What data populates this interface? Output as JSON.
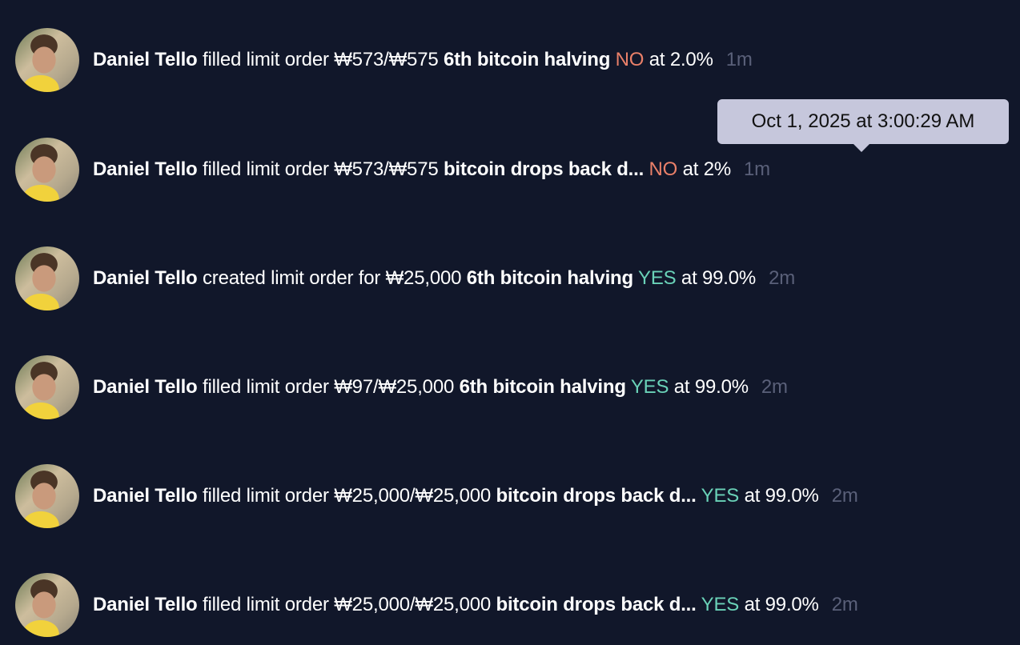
{
  "feed": [
    {
      "user": "Daniel Tello",
      "action": "filled limit order",
      "amount": "₩573/₩575",
      "market": "6th bitcoin halving",
      "outcome": "NO",
      "price": "at 2.0%",
      "time": "1m"
    },
    {
      "user": "Daniel Tello",
      "action": "filled limit order",
      "amount": "₩573/₩575",
      "market": "bitcoin drops back d...",
      "outcome": "NO",
      "price": "at 2%",
      "time": "1m"
    },
    {
      "user": "Daniel Tello",
      "action": "created limit order for",
      "amount": "₩25,000",
      "market": "6th bitcoin halving",
      "outcome": "YES",
      "price": "at 99.0%",
      "time": "2m"
    },
    {
      "user": "Daniel Tello",
      "action": "filled limit order",
      "amount": "₩97/₩25,000",
      "market": "6th bitcoin halving",
      "outcome": "YES",
      "price": "at 99.0%",
      "time": "2m"
    },
    {
      "user": "Daniel Tello",
      "action": "filled limit order",
      "amount": "₩25,000/₩25,000",
      "market": "bitcoin drops back d...",
      "outcome": "YES",
      "price": "at 99.0%",
      "time": "2m"
    },
    {
      "user": "Daniel Tello",
      "action": "filled limit order",
      "amount": "₩25,000/₩25,000",
      "market": "bitcoin drops back d...",
      "outcome": "YES",
      "price": "at 99.0%",
      "time": "2m"
    }
  ],
  "tooltip": "Oct 1, 2025 at 3:00:29 AM",
  "colors": {
    "background": "#11172a",
    "no": "#ea8069",
    "yes": "#6ad2b8",
    "time": "#5a6079",
    "tooltip": "#c6c7dc"
  }
}
